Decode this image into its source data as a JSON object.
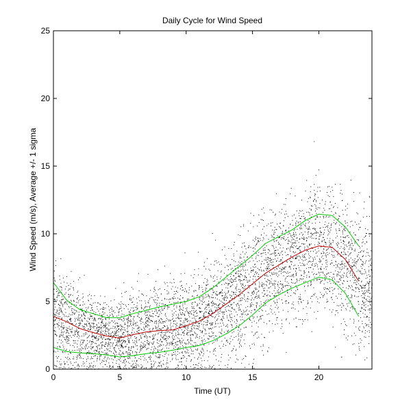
{
  "chart_data": {
    "type": "scatter",
    "title": "Daily Cycle for Wind Speed",
    "xlabel": "Time (UT)",
    "ylabel": "Wind Speed (m/s), Average +/- 1 sigma",
    "xlim": [
      0,
      24
    ],
    "ylim": [
      0,
      25
    ],
    "xticks": [
      0,
      5,
      10,
      15,
      20
    ],
    "yticks": [
      0,
      5,
      10,
      15,
      20,
      25
    ],
    "grid": false,
    "colors": {
      "points": "#000000",
      "mean": "#c00000",
      "sigma": "#00cc00",
      "axes": "#000000"
    },
    "series": [
      {
        "name": "Average",
        "color": "#c00000",
        "x": [
          0,
          1,
          2,
          3,
          4,
          5,
          6,
          7,
          8,
          9,
          10,
          11,
          12,
          13,
          14,
          15,
          16,
          17,
          18,
          19,
          20,
          21,
          22,
          23
        ],
        "y": [
          3.9,
          3.5,
          3.0,
          2.7,
          2.45,
          2.3,
          2.55,
          2.75,
          2.85,
          2.9,
          3.2,
          3.55,
          4.1,
          4.8,
          5.5,
          6.3,
          7.1,
          7.7,
          8.3,
          8.8,
          9.1,
          9.0,
          8.1,
          6.5
        ]
      },
      {
        "name": "Average + 1 sigma",
        "color": "#00cc00",
        "x": [
          0,
          1,
          2,
          3,
          4,
          5,
          6,
          7,
          8,
          9,
          10,
          11,
          12,
          13,
          14,
          15,
          16,
          17,
          18,
          19,
          20,
          21,
          22,
          23
        ],
        "y": [
          6.4,
          5.1,
          4.4,
          4.1,
          3.8,
          3.8,
          4.1,
          4.35,
          4.6,
          4.8,
          5.0,
          5.35,
          6.0,
          6.8,
          7.6,
          8.4,
          9.3,
          9.8,
          10.3,
          11.0,
          11.45,
          11.35,
          10.5,
          9.1
        ]
      },
      {
        "name": "Average - 1 sigma",
        "color": "#00cc00",
        "x": [
          0,
          1,
          2,
          3,
          4,
          5,
          6,
          7,
          8,
          9,
          10,
          11,
          12,
          13,
          14,
          15,
          16,
          17,
          18,
          19,
          20,
          21,
          22,
          23
        ],
        "y": [
          1.6,
          1.3,
          1.2,
          1.15,
          1.05,
          0.9,
          1.0,
          1.15,
          1.25,
          1.4,
          1.6,
          1.75,
          2.1,
          2.6,
          3.2,
          4.0,
          4.9,
          5.5,
          6.0,
          6.4,
          6.8,
          6.6,
          5.6,
          3.9
        ]
      }
    ]
  }
}
